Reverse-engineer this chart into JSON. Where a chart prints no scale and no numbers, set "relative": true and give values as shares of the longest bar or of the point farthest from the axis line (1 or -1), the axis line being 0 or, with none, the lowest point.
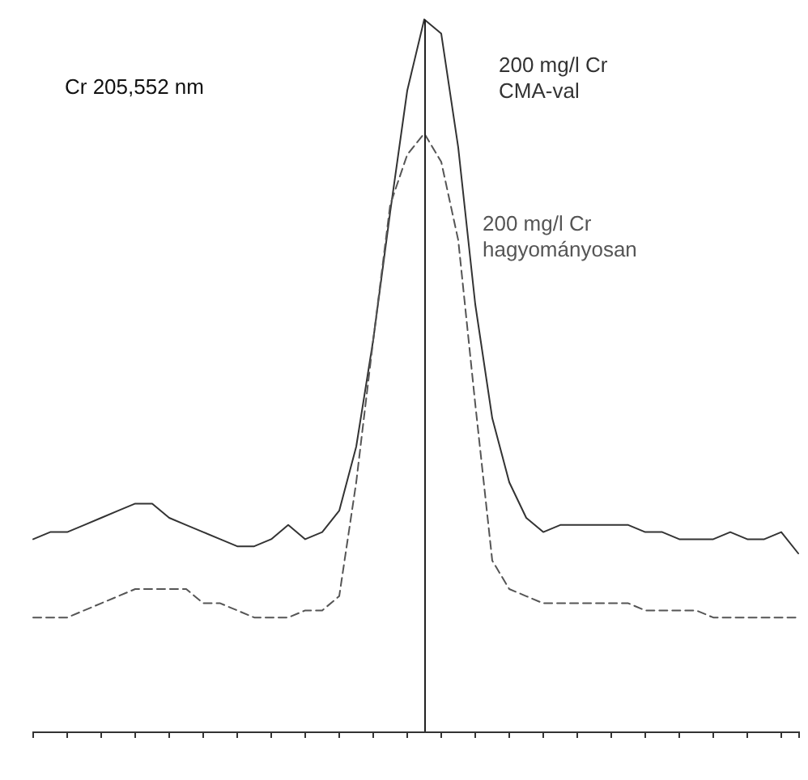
{
  "chart_data": {
    "type": "line",
    "title": "Cr 205,552 nm",
    "relative": true,
    "categories": [
      null,
      null,
      null,
      null,
      null,
      null,
      null,
      null,
      null,
      null,
      null,
      null,
      null,
      null,
      null,
      null,
      null,
      null,
      null,
      null,
      null,
      null,
      null,
      null,
      null,
      null,
      null,
      null,
      null,
      null,
      null,
      null,
      null,
      null,
      null,
      null,
      null,
      null,
      null,
      null,
      null,
      null,
      null,
      null,
      null,
      null
    ],
    "series": [
      {
        "name": "200 mg/l Cr\nCMA-val",
        "color": "#333333",
        "line_style": "solid",
        "values": [
          0.27,
          0.28,
          0.28,
          0.29,
          0.3,
          0.31,
          0.32,
          0.32,
          0.3,
          0.29,
          0.28,
          0.27,
          0.26,
          0.26,
          0.27,
          0.29,
          0.27,
          0.28,
          0.31,
          0.4,
          0.55,
          0.73,
          0.9,
          1.0,
          0.98,
          0.82,
          0.6,
          0.44,
          0.35,
          0.3,
          0.28,
          0.29,
          0.29,
          0.29,
          0.29,
          0.29,
          0.28,
          0.28,
          0.27,
          0.27,
          0.27,
          0.28,
          0.27,
          0.27,
          0.28,
          0.25
        ]
      },
      {
        "name": "200 mg/l Cr\nhagyományosan",
        "color": "#555555",
        "line_style": "dashed",
        "values": [
          0.16,
          0.16,
          0.16,
          0.17,
          0.18,
          0.19,
          0.2,
          0.2,
          0.2,
          0.2,
          0.18,
          0.18,
          0.17,
          0.16,
          0.16,
          0.16,
          0.17,
          0.17,
          0.19,
          0.35,
          0.55,
          0.74,
          0.81,
          0.84,
          0.8,
          0.69,
          0.46,
          0.24,
          0.2,
          0.19,
          0.18,
          0.18,
          0.18,
          0.18,
          0.18,
          0.18,
          0.17,
          0.17,
          0.17,
          0.17,
          0.16,
          0.16,
          0.16,
          0.16,
          0.16,
          0.16
        ]
      }
    ],
    "marker": "none",
    "grid": false,
    "legend": false
  }
}
